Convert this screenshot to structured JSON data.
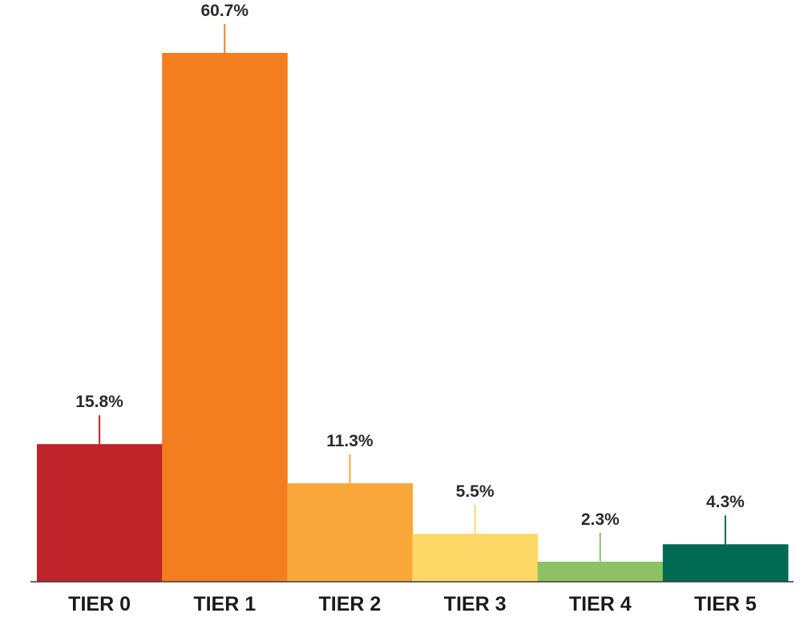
{
  "chart_data": {
    "type": "bar",
    "title": "",
    "xlabel": "",
    "ylabel": "",
    "unit": "%",
    "categories": [
      "TIER 0",
      "TIER 1",
      "TIER 2",
      "TIER 3",
      "TIER 4",
      "TIER 5"
    ],
    "values": [
      15.8,
      60.7,
      11.3,
      5.5,
      2.3,
      4.3
    ],
    "value_labels": [
      "15.8%",
      "60.7%",
      "11.3%",
      "5.5%",
      "2.3%",
      "4.3%"
    ],
    "colors": [
      "#c0232a",
      "#f37e20",
      "#f9a73b",
      "#fdd867",
      "#8cc165",
      "#006a52"
    ],
    "ylim": [
      0,
      60.7
    ],
    "grid": false,
    "legend": "none"
  }
}
